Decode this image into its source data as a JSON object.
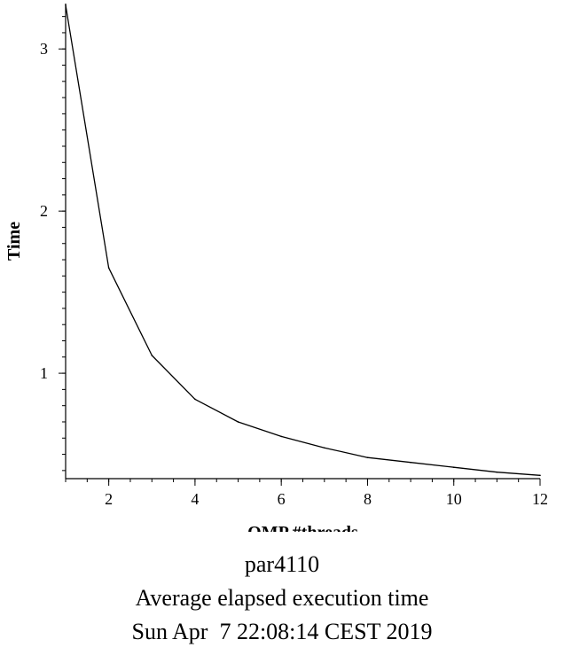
{
  "chart_data": {
    "type": "line",
    "xlabel": "OMP #threads",
    "ylabel": "Time",
    "xlim": [
      1,
      12
    ],
    "ylim": [
      0.35,
      3.28
    ],
    "x_ticks": [
      2,
      4,
      6,
      8,
      10,
      12
    ],
    "y_ticks": [
      1,
      2,
      3
    ],
    "x_minor_step": 0.5,
    "y_minor_step": 0.1,
    "grid": false,
    "series": [
      {
        "x": [
          1,
          2,
          3,
          4,
          5,
          6,
          7,
          8,
          9,
          10,
          11,
          12
        ],
        "values": [
          3.27,
          1.65,
          1.11,
          0.84,
          0.7,
          0.61,
          0.54,
          0.48,
          0.45,
          0.42,
          0.39,
          0.37
        ],
        "color": "#000000"
      }
    ]
  },
  "caption": {
    "line1": "par4110",
    "line2": "Average elapsed execution time",
    "line3": "Sun Apr  7 22:08:14 CEST 2019"
  }
}
